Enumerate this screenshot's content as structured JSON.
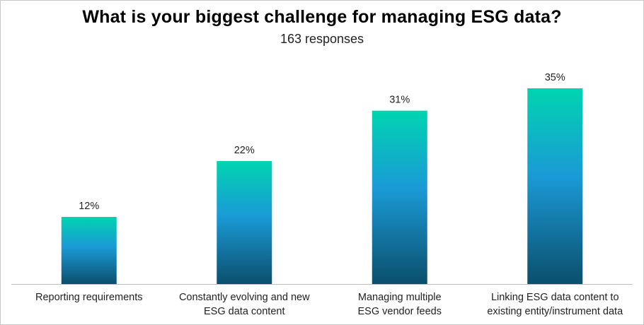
{
  "chart_data": {
    "type": "bar",
    "title": "What is your biggest challenge for managing ESG data?",
    "subtitle": "163 responses",
    "categories": [
      "Reporting requirements",
      "Constantly evolving and new\nESG data content",
      "Managing multiple\nESG vendor feeds",
      "Linking ESG data content to\nexisting entity/instrument data"
    ],
    "values": [
      12,
      22,
      31,
      35
    ],
    "data_labels": [
      "12%",
      "22%",
      "31%",
      "35%"
    ],
    "ylim": [
      0,
      35
    ],
    "grid": false,
    "colors": {
      "bar_top": "#00d4b0",
      "bar_mid": "#1a9ad6",
      "bar_bottom": "#0b4f6c",
      "axis": "#bfbfbf"
    }
  }
}
